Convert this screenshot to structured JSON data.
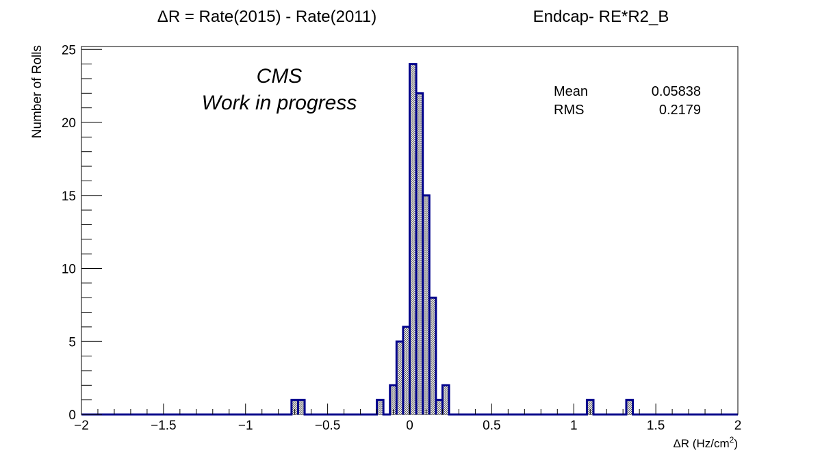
{
  "header": {
    "title": "ΔR = Rate(2015) - Rate(2011)",
    "region": "Endcap- RE*R2_B"
  },
  "annotation": {
    "line1": "CMS",
    "line2": "Work in progress"
  },
  "stats": {
    "mean_label": "Mean",
    "mean_value": "0.05838",
    "rms_label": "RMS",
    "rms_value": "0.2179"
  },
  "colors": {
    "hist_line": "#00008b",
    "hist_fill": "#c8c8c8"
  },
  "chart_data": {
    "type": "bar",
    "title": "ΔR = Rate(2015) - Rate(2011)",
    "xlabel_main": "ΔR (Hz/cm",
    "xlabel_sup": "2",
    "xlabel_close": ")",
    "ylabel": "Number of Rolls",
    "xlim": [
      -2,
      2
    ],
    "ylim": [
      0,
      25.2
    ],
    "grid": false,
    "bin_width": 0.04,
    "x_ticks": [
      -2,
      -1.5,
      -1,
      -0.5,
      0,
      0.5,
      1,
      1.5,
      2
    ],
    "x_tick_labels": [
      "−2",
      "−1.5",
      "−1",
      "−0.5",
      "0",
      "0.5",
      "1",
      "1.5",
      "2"
    ],
    "y_ticks": [
      0,
      5,
      10,
      15,
      20,
      25
    ],
    "y_tick_labels": [
      "0",
      "5",
      "10",
      "15",
      "20",
      "25"
    ],
    "bins": [
      {
        "x": -0.72,
        "count": 1
      },
      {
        "x": -0.68,
        "count": 1
      },
      {
        "x": -0.2,
        "count": 1
      },
      {
        "x": -0.12,
        "count": 2
      },
      {
        "x": -0.08,
        "count": 5
      },
      {
        "x": -0.04,
        "count": 6
      },
      {
        "x": 0.0,
        "count": 24
      },
      {
        "x": 0.04,
        "count": 22
      },
      {
        "x": 0.08,
        "count": 15
      },
      {
        "x": 0.12,
        "count": 8
      },
      {
        "x": 0.16,
        "count": 1
      },
      {
        "x": 0.2,
        "count": 2
      },
      {
        "x": 1.08,
        "count": 1
      },
      {
        "x": 1.32,
        "count": 1
      }
    ]
  }
}
